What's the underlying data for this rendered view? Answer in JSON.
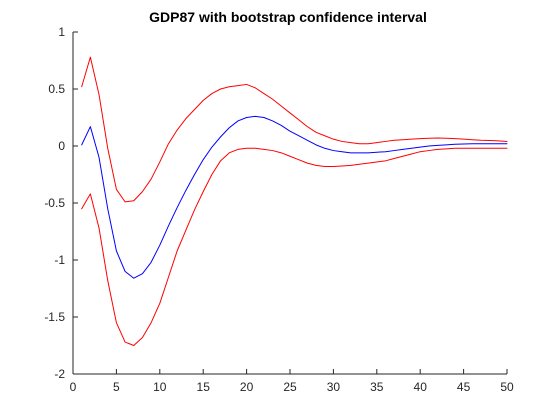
{
  "chart_data": {
    "type": "line",
    "title": "GDP87 with bootstrap confidence interval",
    "xlabel": "",
    "ylabel": "",
    "xlim": [
      0,
      50
    ],
    "ylim": [
      -2,
      1
    ],
    "x_ticks": [
      0,
      5,
      10,
      15,
      20,
      25,
      30,
      35,
      40,
      45,
      50
    ],
    "y_ticks": [
      -2,
      -1.5,
      -1,
      -0.5,
      0,
      0.5,
      1
    ],
    "x_tick_labels": [
      "0",
      "5",
      "10",
      "15",
      "20",
      "25",
      "30",
      "35",
      "40",
      "45",
      "50"
    ],
    "y_tick_labels": [
      "-2",
      "-1.5",
      "-1",
      "-0.5",
      "0",
      "0.5",
      "1"
    ],
    "grid": false,
    "legend": "none",
    "x": [
      1,
      2,
      3,
      4,
      5,
      6,
      7,
      8,
      9,
      10,
      11,
      12,
      13,
      14,
      15,
      16,
      17,
      18,
      19,
      20,
      21,
      22,
      23,
      24,
      25,
      26,
      27,
      28,
      29,
      30,
      31,
      32,
      33,
      34,
      35,
      36,
      37,
      38,
      39,
      40,
      41,
      42,
      43,
      44,
      45,
      46,
      47,
      48,
      49,
      50
    ],
    "series": [
      {
        "color": "#ff0000",
        "values": [
          0.52,
          0.78,
          0.45,
          -0.02,
          -0.38,
          -0.49,
          -0.48,
          -0.4,
          -0.29,
          -0.14,
          0.02,
          0.14,
          0.24,
          0.32,
          0.4,
          0.46,
          0.5,
          0.52,
          0.53,
          0.54,
          0.51,
          0.46,
          0.41,
          0.35,
          0.29,
          0.23,
          0.17,
          0.12,
          0.09,
          0.06,
          0.04,
          0.03,
          0.02,
          0.02,
          0.03,
          0.04,
          0.05,
          0.055,
          0.06,
          0.065,
          0.068,
          0.07,
          0.068,
          0.065,
          0.06,
          0.055,
          0.05,
          0.048,
          0.045,
          0.04
        ]
      },
      {
        "color": "#0000ff",
        "values": [
          0.01,
          0.17,
          -0.1,
          -0.55,
          -0.92,
          -1.1,
          -1.16,
          -1.12,
          -1.02,
          -0.87,
          -0.7,
          -0.54,
          -0.39,
          -0.25,
          -0.12,
          -0.01,
          0.08,
          0.16,
          0.22,
          0.25,
          0.26,
          0.25,
          0.22,
          0.18,
          0.13,
          0.09,
          0.05,
          0.01,
          -0.02,
          -0.04,
          -0.05,
          -0.06,
          -0.06,
          -0.06,
          -0.055,
          -0.05,
          -0.04,
          -0.03,
          -0.02,
          -0.01,
          0.0,
          0.005,
          0.01,
          0.015,
          0.018,
          0.02,
          0.02,
          0.02,
          0.02,
          0.02
        ]
      },
      {
        "color": "#ff0000",
        "values": [
          -0.55,
          -0.42,
          -0.72,
          -1.18,
          -1.55,
          -1.72,
          -1.75,
          -1.68,
          -1.55,
          -1.38,
          -1.15,
          -0.92,
          -0.74,
          -0.56,
          -0.4,
          -0.25,
          -0.13,
          -0.06,
          -0.03,
          -0.02,
          -0.02,
          -0.03,
          -0.04,
          -0.06,
          -0.09,
          -0.12,
          -0.15,
          -0.17,
          -0.18,
          -0.18,
          -0.175,
          -0.17,
          -0.16,
          -0.15,
          -0.14,
          -0.13,
          -0.11,
          -0.09,
          -0.07,
          -0.05,
          -0.04,
          -0.03,
          -0.025,
          -0.02,
          -0.02,
          -0.02,
          -0.02,
          -0.02,
          -0.02,
          -0.02
        ]
      }
    ]
  }
}
